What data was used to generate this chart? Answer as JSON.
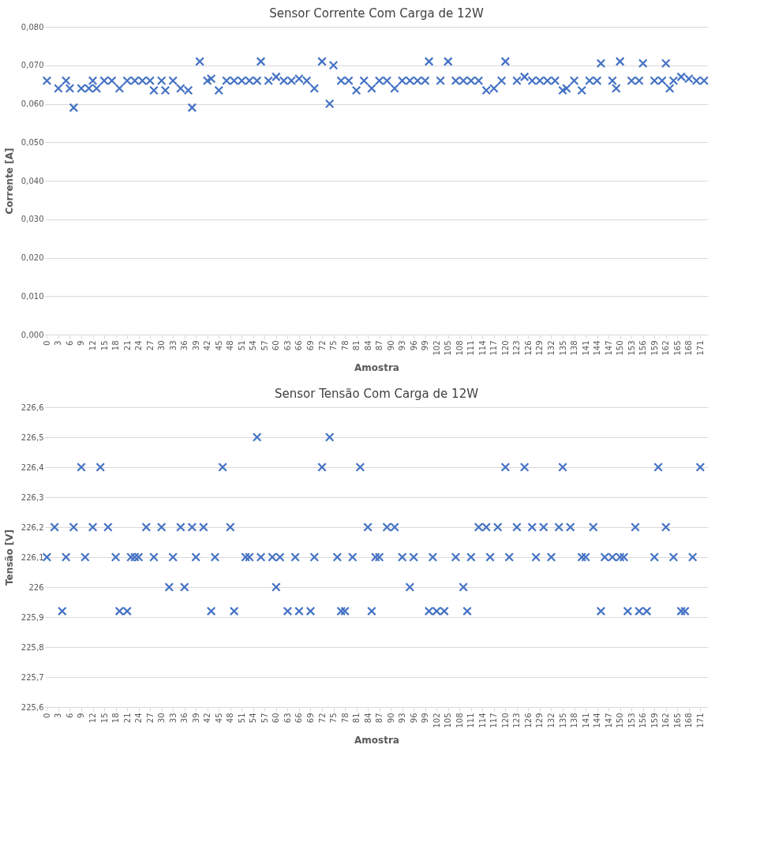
{
  "chart_data": [
    {
      "type": "scatter",
      "title": "Sensor Corrente Com Carga de 12W",
      "xlabel": "Amostra",
      "ylabel": "Corrente [A]",
      "marker": "cross",
      "grid": "y",
      "xlim": [
        -0.5,
        173
      ],
      "xticks": [
        0,
        3,
        6,
        9,
        12,
        15,
        18,
        21,
        24,
        27,
        30,
        33,
        36,
        39,
        42,
        45,
        48,
        51,
        54,
        57,
        60,
        63,
        66,
        69,
        72,
        75,
        78,
        81,
        84,
        87,
        90,
        93,
        96,
        99,
        102,
        105,
        108,
        111,
        114,
        117,
        120,
        123,
        126,
        129,
        132,
        135,
        138,
        141,
        144,
        147,
        150,
        153,
        156,
        159,
        162,
        165,
        168,
        171
      ],
      "ylim": [
        0,
        0.08
      ],
      "yticks": [
        {
          "value": 0,
          "label": "0,000"
        },
        {
          "value": 0.01,
          "label": "0,010"
        },
        {
          "value": 0.02,
          "label": "0,020"
        },
        {
          "value": 0.03,
          "label": "0,030"
        },
        {
          "value": 0.04,
          "label": "0,040"
        },
        {
          "value": 0.05,
          "label": "0,050"
        },
        {
          "value": 0.06,
          "label": "0,060"
        },
        {
          "value": 0.07,
          "label": "0,070"
        },
        {
          "value": 0.08,
          "label": "0,080"
        }
      ],
      "series": [
        {
          "color": "#4472c4",
          "x": [
            0,
            3,
            5,
            6,
            7,
            9,
            11,
            12,
            13,
            15,
            17,
            19,
            21,
            23,
            25,
            27,
            28,
            30,
            31,
            33,
            35,
            37,
            38,
            40,
            42,
            43,
            45,
            47,
            49,
            51,
            53,
            55,
            56,
            58,
            60,
            62,
            64,
            66,
            68,
            70,
            72,
            74,
            75,
            77,
            79,
            81,
            83,
            85,
            87,
            89,
            91,
            93,
            95,
            97,
            99,
            100,
            103,
            105,
            107,
            109,
            111,
            113,
            115,
            117,
            119,
            120,
            123,
            125,
            127,
            129,
            131,
            133,
            135,
            136,
            138,
            140,
            142,
            144,
            145,
            148,
            149,
            150,
            153,
            155,
            156,
            159,
            161,
            163,
            162,
            164,
            166,
            168,
            170,
            172
          ],
          "values": [
            0.066,
            0.064,
            0.066,
            0.064,
            0.059,
            0.064,
            0.064,
            0.066,
            0.064,
            0.066,
            0.066,
            0.064,
            0.066,
            0.066,
            0.066,
            0.066,
            0.0635,
            0.066,
            0.0635,
            0.066,
            0.064,
            0.0635,
            0.059,
            0.071,
            0.066,
            0.0665,
            0.0635,
            0.066,
            0.066,
            0.066,
            0.066,
            0.066,
            0.071,
            0.066,
            0.067,
            0.066,
            0.066,
            0.0665,
            0.066,
            0.064,
            0.071,
            0.06,
            0.07,
            0.066,
            0.066,
            0.0635,
            0.066,
            0.064,
            0.066,
            0.066,
            0.064,
            0.066,
            0.066,
            0.066,
            0.066,
            0.071,
            0.066,
            0.071,
            0.066,
            0.066,
            0.066,
            0.066,
            0.0635,
            0.064,
            0.066,
            0.071,
            0.066,
            0.067,
            0.066,
            0.066,
            0.066,
            0.066,
            0.0635,
            0.064,
            0.066,
            0.0635,
            0.066,
            0.066,
            0.0705,
            0.066,
            0.064,
            0.071,
            0.066,
            0.066,
            0.0705,
            0.066,
            0.066,
            0.064,
            0.0705,
            0.066,
            0.067,
            0.0665,
            0.066,
            0.066
          ]
        }
      ]
    },
    {
      "type": "scatter",
      "title": "Sensor Tensão Com Carga de 12W",
      "xlabel": "Amostra",
      "ylabel": "Tensão [V]",
      "marker": "cross",
      "grid": "y",
      "xlim": [
        -0.5,
        173
      ],
      "xticks": [
        0,
        3,
        6,
        9,
        12,
        15,
        18,
        21,
        24,
        27,
        30,
        33,
        36,
        39,
        42,
        45,
        48,
        51,
        54,
        57,
        60,
        63,
        66,
        69,
        72,
        75,
        78,
        81,
        84,
        87,
        90,
        93,
        96,
        99,
        102,
        105,
        108,
        111,
        114,
        117,
        120,
        123,
        126,
        129,
        132,
        135,
        138,
        141,
        144,
        147,
        150,
        153,
        156,
        159,
        162,
        165,
        168,
        171
      ],
      "ylim": [
        225.6,
        226.6
      ],
      "yticks": [
        {
          "value": 225.6,
          "label": "225,6"
        },
        {
          "value": 225.7,
          "label": "225,7"
        },
        {
          "value": 225.8,
          "label": "225,8"
        },
        {
          "value": 225.9,
          "label": "225,9"
        },
        {
          "value": 226,
          "label": "226"
        },
        {
          "value": 226.1,
          "label": "226,1"
        },
        {
          "value": 226.2,
          "label": "226,2"
        },
        {
          "value": 226.3,
          "label": "226,3"
        },
        {
          "value": 226.4,
          "label": "226,4"
        },
        {
          "value": 226.5,
          "label": "226,5"
        },
        {
          "value": 226.6,
          "label": "226,6"
        }
      ],
      "series": [
        {
          "color": "#4472c4",
          "x": [
            0,
            2,
            4,
            5,
            7,
            9,
            10,
            12,
            14,
            16,
            18,
            19,
            21,
            22,
            23,
            24,
            26,
            28,
            30,
            32,
            33,
            35,
            36,
            38,
            39,
            41,
            43,
            44,
            46,
            48,
            49,
            52,
            53,
            55,
            56,
            59,
            60,
            61,
            63,
            65,
            66,
            69,
            70,
            72,
            74,
            76,
            77,
            78,
            80,
            82,
            84,
            85,
            86,
            87,
            89,
            91,
            93,
            95,
            96,
            100,
            101,
            102,
            104,
            107,
            109,
            110,
            111,
            113,
            115,
            116,
            118,
            120,
            121,
            123,
            125,
            127,
            128,
            130,
            132,
            134,
            135,
            137,
            140,
            141,
            143,
            145,
            146,
            148,
            150,
            151,
            152,
            154,
            155,
            157,
            159,
            160,
            162,
            164,
            166,
            167,
            169,
            171
          ],
          "values": [
            226.1,
            226.2,
            225.92,
            226.1,
            226.2,
            226.4,
            226.1,
            226.2,
            226.4,
            226.2,
            226.1,
            225.92,
            225.92,
            226.1,
            226.1,
            226.1,
            226.2,
            226.1,
            226.2,
            226.0,
            226.1,
            226.2,
            226.0,
            226.2,
            226.1,
            226.2,
            225.92,
            226.1,
            226.4,
            226.2,
            225.92,
            226.1,
            226.1,
            226.5,
            226.1,
            226.1,
            226.0,
            226.1,
            225.92,
            226.1,
            225.92,
            225.92,
            226.1,
            226.4,
            226.5,
            226.1,
            225.92,
            225.92,
            226.1,
            226.4,
            226.2,
            225.92,
            226.1,
            226.1,
            226.2,
            226.2,
            226.1,
            226.0,
            226.1,
            225.92,
            226.1,
            225.92,
            225.92,
            226.1,
            226.0,
            225.92,
            226.1,
            226.2,
            226.2,
            226.1,
            226.2,
            226.4,
            226.1,
            226.2,
            226.4,
            226.2,
            226.1,
            226.2,
            226.1,
            226.2,
            226.4,
            226.2,
            226.1,
            226.1,
            226.2,
            225.92,
            226.1,
            226.1,
            226.1,
            226.1,
            225.92,
            226.2,
            225.92,
            225.92,
            226.1,
            226.4,
            226.2,
            226.1,
            225.92,
            225.92,
            226.1,
            226.4
          ]
        }
      ]
    }
  ]
}
